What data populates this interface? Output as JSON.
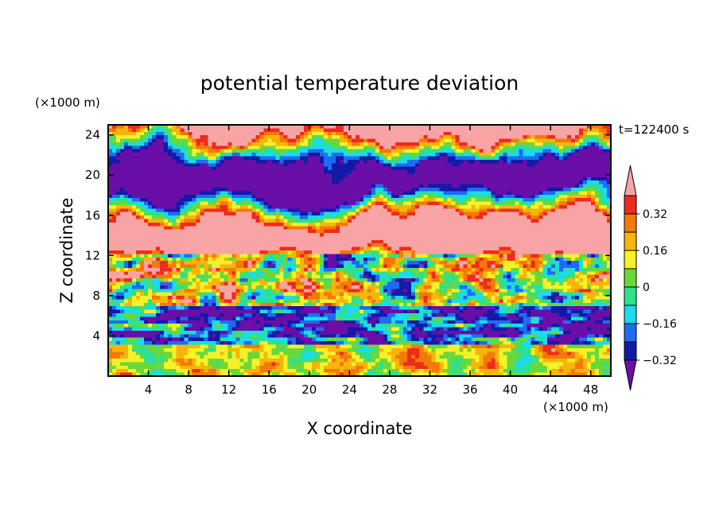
{
  "chart_data": {
    "type": "heatmap",
    "title": "potential temperature deviation",
    "xlabel": "X coordinate",
    "ylabel": "Z coordinate",
    "x_unit": "(×1000 m)",
    "y_unit": "(×1000 m)",
    "time_label": "t=122400 s",
    "xlim": [
      0,
      50
    ],
    "ylim": [
      0,
      25
    ],
    "x_ticks": [
      "4",
      "8",
      "12",
      "16",
      "20",
      "24",
      "28",
      "32",
      "36",
      "40",
      "44",
      "48"
    ],
    "y_ticks": [
      "4",
      "8",
      "12",
      "16",
      "20",
      "24"
    ],
    "colorbar": {
      "labels": [
        "0.32",
        "0.16",
        "0",
        "−0.16",
        "−0.32"
      ],
      "levels": [
        -0.4,
        -0.32,
        -0.24,
        -0.16,
        -0.08,
        0,
        0.08,
        0.16,
        0.24,
        0.32,
        0.4
      ],
      "colors": [
        "#6a0ea8",
        "#141aa6",
        "#1e6cf2",
        "#19dcec",
        "#2ee08e",
        "#6ad83a",
        "#f4f228",
        "#f7b50c",
        "#f27a08",
        "#ef2a1e",
        "#f9a4a4"
      ]
    },
    "bands": [
      {
        "z": [
          0.0,
          3.2
        ],
        "character": "near-zero with positive/negative turbulent plumes"
      },
      {
        "z": [
          3.2,
          7.0
        ],
        "character": "strong negative with positive streaks"
      },
      {
        "z": [
          7.0,
          12.0
        ],
        "character": "mixed positive/negative, highly turbulent"
      },
      {
        "z": [
          12.0,
          25.0
        ],
        "character": "alternating layers of strong positive (>0.4) and strong negative (<-0.4)"
      }
    ]
  }
}
